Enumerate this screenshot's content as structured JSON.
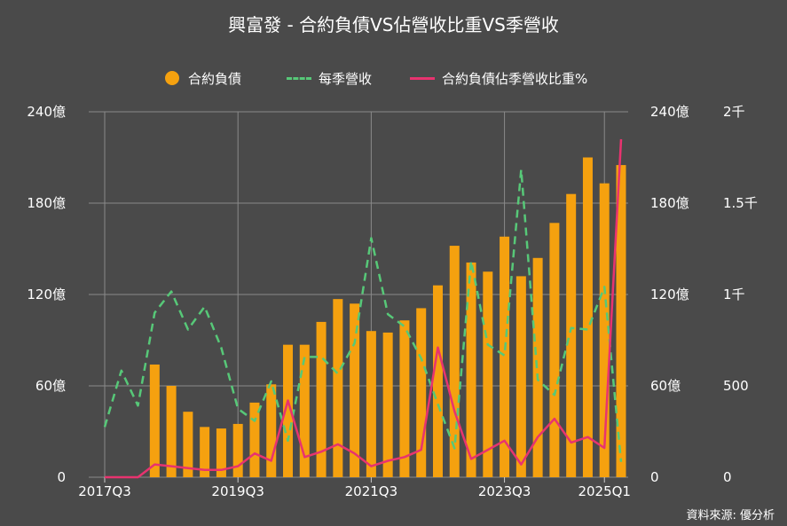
{
  "title": "興富發 - 合約負債VS佔營收比重VS季營收",
  "source": "資料來源: 優分析",
  "legend": {
    "bar": "合約負債",
    "dash": "每季營收",
    "line": "合約負債佔季營收比重%"
  },
  "colors": {
    "bar": "#f5a10f",
    "dash": "#57c878",
    "line": "#e8336f",
    "grid": "#8a8a8a",
    "background": "#4a4a4a"
  },
  "chart_data": {
    "type": "bar",
    "title": "興富發 - 合約負債VS佔營收比重VS季營收",
    "x_ticks": [
      "2017Q3",
      "2019Q3",
      "2021Q3",
      "2023Q3",
      "2025Q1"
    ],
    "y_left": {
      "ticks": [
        "0",
        "60億",
        "120億",
        "180億",
        "240億"
      ],
      "ylim": [
        0,
        240
      ]
    },
    "y_right_outer": {
      "ticks": [
        "0",
        "500",
        "1千",
        "1.5千",
        "2千"
      ],
      "ylim": [
        0,
        2000
      ]
    },
    "y_right_inner": {
      "ticks": [
        "0",
        "60億",
        "120億",
        "180億",
        "240億"
      ],
      "ylim": [
        0,
        240
      ]
    },
    "grid": true,
    "legend_position": "top",
    "series": [
      {
        "name": "合約負債",
        "kind": "bar",
        "axis": "left",
        "values": [
          0,
          0,
          0,
          74,
          60,
          43,
          33,
          32,
          35,
          49,
          61,
          87,
          87,
          102,
          117,
          114,
          96,
          95,
          103,
          111,
          126,
          152,
          141,
          135,
          158,
          132,
          144,
          167,
          186,
          210,
          193,
          205
        ]
      },
      {
        "name": "每季營收",
        "kind": "dashed-line",
        "axis": "right_inner",
        "values": [
          33,
          70,
          47,
          108,
          122,
          97,
          112,
          85,
          45,
          37,
          63,
          24,
          79,
          79,
          68,
          88,
          157,
          107,
          99,
          78,
          48,
          19,
          142,
          87,
          80,
          202,
          64,
          54,
          98,
          97,
          125,
          10
        ]
      },
      {
        "name": "合約負債佔季營收比重%",
        "kind": "line",
        "axis": "right_outer",
        "values": [
          0,
          0,
          0,
          70,
          60,
          50,
          40,
          40,
          60,
          130,
          90,
          420,
          110,
          140,
          180,
          130,
          60,
          90,
          110,
          150,
          710,
          360,
          100,
          150,
          200,
          70,
          220,
          320,
          190,
          220,
          160,
          1850
        ]
      }
    ]
  }
}
